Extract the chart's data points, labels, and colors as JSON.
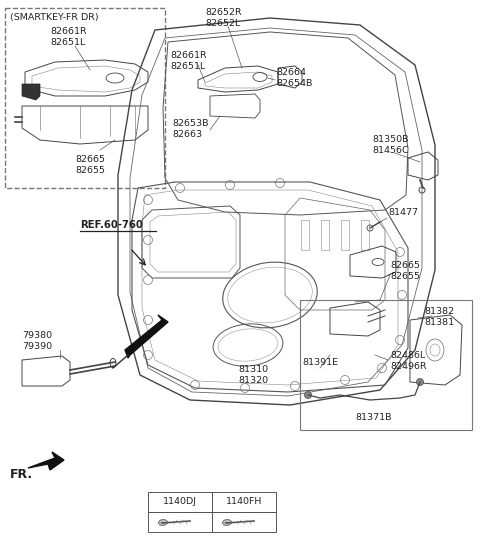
{
  "bg_color": "#ffffff",
  "fig_width": 4.8,
  "fig_height": 5.56,
  "dpi": 100,
  "text_color": "#222222",
  "line_color": "#333333",
  "labels": {
    "smartkey_title": "(SMARTKEY-FR DR)",
    "sk_parts1": [
      "82661R",
      "82651L"
    ],
    "sk_parts2": [
      "82665",
      "82655"
    ],
    "top1": [
      "82652R",
      "82652L"
    ],
    "top2": [
      "82661R",
      "82651L"
    ],
    "top3": [
      "82664",
      "82654B"
    ],
    "top4": [
      "82653B",
      "82663"
    ],
    "rt1": [
      "81350B",
      "81456C"
    ],
    "mid_r": [
      "81477"
    ],
    "rmid": [
      "82665",
      "82655"
    ],
    "lmid": [
      "79380",
      "79390"
    ],
    "bc": [
      "81310",
      "81320"
    ],
    "b1": [
      "81382",
      "81381"
    ],
    "b2": [
      "82486L",
      "82496R"
    ],
    "b3": "81391E",
    "b4": "81371B",
    "ref": "REF.60-760",
    "fr": "FR.",
    "tbl": [
      "1140DJ",
      "1140FH"
    ]
  }
}
